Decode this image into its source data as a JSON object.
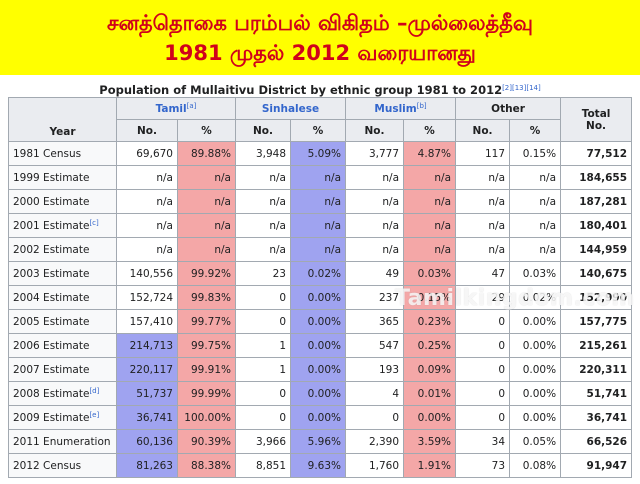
{
  "banner": {
    "line1": "சனத்தொகை பரம்பல் விகிதம் –முல்லைத்தீவு",
    "line2": "1981 முதல் 2012 வரையானது"
  },
  "caption": {
    "text": "Population of Mullaitivu District by ethnic group 1981 to 2012",
    "refs": "[2][13][14]"
  },
  "headers": {
    "year": "Year",
    "tamil": "Tamil",
    "tamil_ref": "[a]",
    "sinhalese": "Sinhalese",
    "muslim": "Muslim",
    "muslim_ref": "[b]",
    "other": "Other",
    "total": "Total",
    "no": "No.",
    "pct": "%"
  },
  "rows": [
    {
      "year": "1981 Census",
      "ref": "",
      "tamil_no": "69,670",
      "tamil_pct": "89.88%",
      "sin_no": "3,948",
      "sin_pct": "5.09%",
      "mus_no": "3,777",
      "mus_pct": "4.87%",
      "oth_no": "117",
      "oth_pct": "0.15%",
      "total": "77,512"
    },
    {
      "year": "1999 Estimate",
      "ref": "",
      "tamil_no": "n/a",
      "tamil_pct": "n/a",
      "sin_no": "n/a",
      "sin_pct": "n/a",
      "mus_no": "n/a",
      "mus_pct": "n/a",
      "oth_no": "n/a",
      "oth_pct": "n/a",
      "total": "184,655"
    },
    {
      "year": "2000 Estimate",
      "ref": "",
      "tamil_no": "n/a",
      "tamil_pct": "n/a",
      "sin_no": "n/a",
      "sin_pct": "n/a",
      "mus_no": "n/a",
      "mus_pct": "n/a",
      "oth_no": "n/a",
      "oth_pct": "n/a",
      "total": "187,281"
    },
    {
      "year": "2001 Estimate",
      "ref": "[c]",
      "tamil_no": "n/a",
      "tamil_pct": "n/a",
      "sin_no": "n/a",
      "sin_pct": "n/a",
      "mus_no": "n/a",
      "mus_pct": "n/a",
      "oth_no": "n/a",
      "oth_pct": "n/a",
      "total": "180,401"
    },
    {
      "year": "2002 Estimate",
      "ref": "",
      "tamil_no": "n/a",
      "tamil_pct": "n/a",
      "sin_no": "n/a",
      "sin_pct": "n/a",
      "mus_no": "n/a",
      "mus_pct": "n/a",
      "oth_no": "n/a",
      "oth_pct": "n/a",
      "total": "144,959"
    },
    {
      "year": "2003 Estimate",
      "ref": "",
      "tamil_no": "140,556",
      "tamil_pct": "99.92%",
      "sin_no": "23",
      "sin_pct": "0.02%",
      "mus_no": "49",
      "mus_pct": "0.03%",
      "oth_no": "47",
      "oth_pct": "0.03%",
      "total": "140,675"
    },
    {
      "year": "2004 Estimate",
      "ref": "",
      "tamil_no": "152,724",
      "tamil_pct": "99.83%",
      "sin_no": "0",
      "sin_pct": "0.00%",
      "mus_no": "237",
      "mus_pct": "0.15%",
      "oth_no": "29",
      "oth_pct": "0.02%",
      "total": "152,990"
    },
    {
      "year": "2005 Estimate",
      "ref": "",
      "tamil_no": "157,410",
      "tamil_pct": "99.77%",
      "sin_no": "0",
      "sin_pct": "0.00%",
      "mus_no": "365",
      "mus_pct": "0.23%",
      "oth_no": "0",
      "oth_pct": "0.00%",
      "total": "157,775"
    },
    {
      "year": "2006 Estimate",
      "ref": "",
      "tamil_no": "214,713",
      "tamil_pct": "99.75%",
      "sin_no": "1",
      "sin_pct": "0.00%",
      "mus_no": "547",
      "mus_pct": "0.25%",
      "oth_no": "0",
      "oth_pct": "0.00%",
      "total": "215,261",
      "hl": true
    },
    {
      "year": "2007 Estimate",
      "ref": "",
      "tamil_no": "220,117",
      "tamil_pct": "99.91%",
      "sin_no": "1",
      "sin_pct": "0.00%",
      "mus_no": "193",
      "mus_pct": "0.09%",
      "oth_no": "0",
      "oth_pct": "0.00%",
      "total": "220,311",
      "hl": true
    },
    {
      "year": "2008 Estimate",
      "ref": "[d]",
      "tamil_no": "51,737",
      "tamil_pct": "99.99%",
      "sin_no": "0",
      "sin_pct": "0.00%",
      "mus_no": "4",
      "mus_pct": "0.01%",
      "oth_no": "0",
      "oth_pct": "0.00%",
      "total": "51,741",
      "hl": true
    },
    {
      "year": "2009 Estimate",
      "ref": "[e]",
      "tamil_no": "36,741",
      "tamil_pct": "100.00%",
      "sin_no": "0",
      "sin_pct": "0.00%",
      "mus_no": "0",
      "mus_pct": "0.00%",
      "oth_no": "0",
      "oth_pct": "0.00%",
      "total": "36,741",
      "hl": true
    },
    {
      "year": "2011 Enumeration",
      "ref": "",
      "tamil_no": "60,136",
      "tamil_pct": "90.39%",
      "sin_no": "3,966",
      "sin_pct": "5.96%",
      "mus_no": "2,390",
      "mus_pct": "3.59%",
      "oth_no": "34",
      "oth_pct": "0.05%",
      "total": "66,526",
      "hl": true
    },
    {
      "year": "2012 Census",
      "ref": "",
      "tamil_no": "81,263",
      "tamil_pct": "88.38%",
      "sin_no": "8,851",
      "sin_pct": "9.63%",
      "mus_no": "1,760",
      "mus_pct": "1.91%",
      "oth_no": "73",
      "oth_pct": "0.08%",
      "total": "91,947",
      "hl": true
    }
  ],
  "watermark": "Tamilkingdom.com",
  "colors": {
    "banner_bg": "#ffff00",
    "banner_text": "#d0021b",
    "pct_red": "#f4a7a7",
    "pct_blue": "#9fa3f0",
    "link": "#3366cc"
  }
}
